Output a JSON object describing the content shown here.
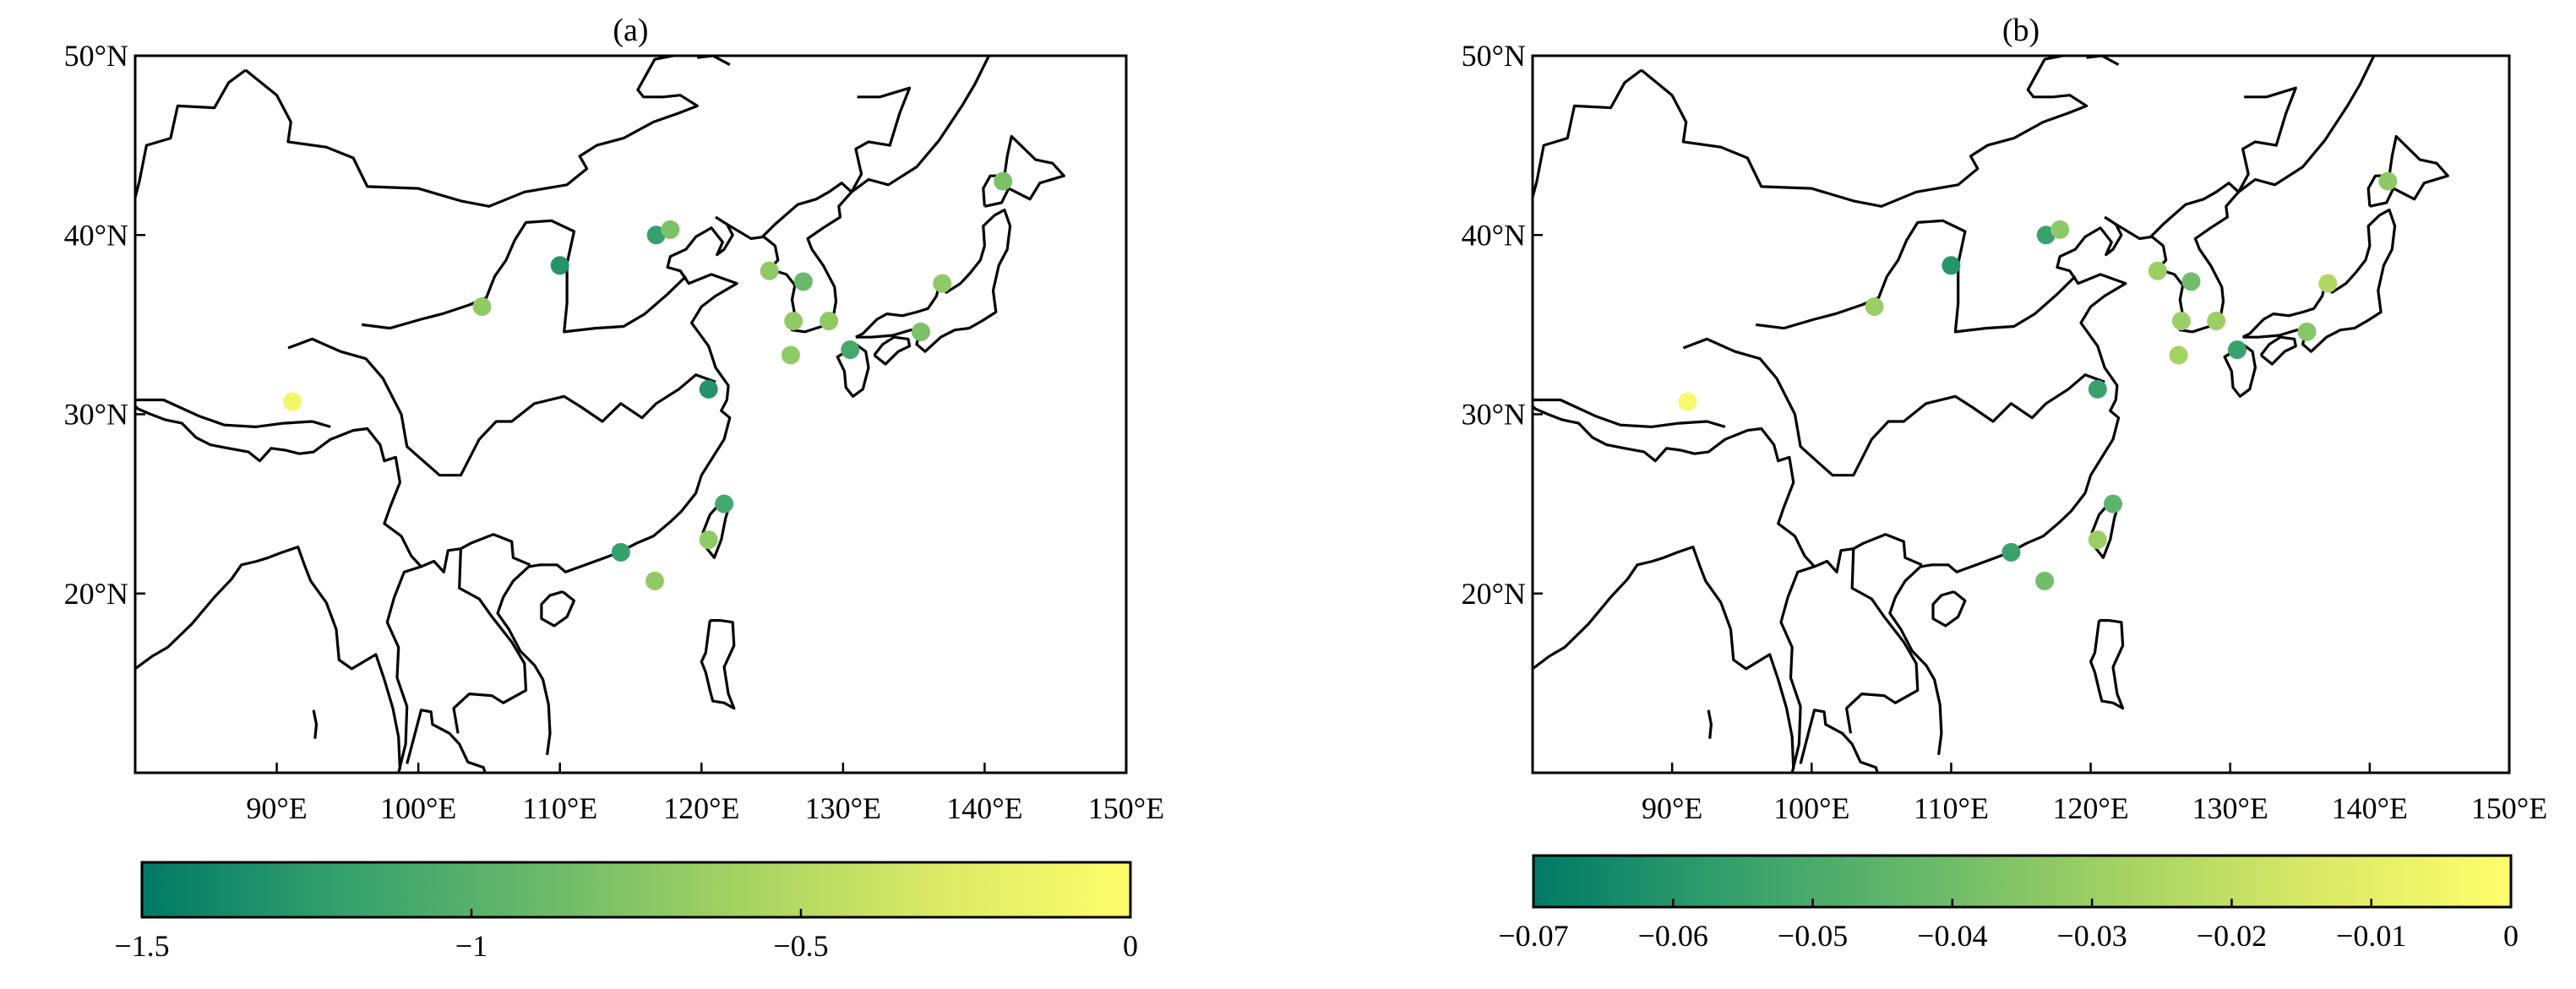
{
  "panels": [
    {
      "id": "a",
      "title": "(a)",
      "lon_ticks": [
        "90°E",
        "100°E",
        "110°E",
        "120°E",
        "130°E",
        "140°E",
        "150°E"
      ],
      "lat_ticks": [
        "50°N",
        "40°N",
        "30°N",
        "20°N"
      ],
      "colorbar_ticks": [
        "−1.5",
        "−1",
        "−0.5",
        "0"
      ],
      "colorbar_range": [
        -1.5,
        0
      ],
      "stations": [
        {
          "lon": 91.1,
          "lat": 30.7,
          "value": -0.1
        },
        {
          "lon": 104.5,
          "lat": 36.0,
          "value": -0.7
        },
        {
          "lon": 110.0,
          "lat": 38.3,
          "value": -1.3
        },
        {
          "lon": 116.8,
          "lat": 40.0,
          "value": -1.2
        },
        {
          "lon": 117.8,
          "lat": 40.3,
          "value": -0.8
        },
        {
          "lon": 120.5,
          "lat": 31.4,
          "value": -1.3
        },
        {
          "lon": 121.6,
          "lat": 25.0,
          "value": -1.1
        },
        {
          "lon": 120.5,
          "lat": 23.0,
          "value": -0.7
        },
        {
          "lon": 114.3,
          "lat": 22.3,
          "value": -1.2
        },
        {
          "lon": 116.7,
          "lat": 20.7,
          "value": -0.7
        },
        {
          "lon": 124.8,
          "lat": 38.0,
          "value": -0.7
        },
        {
          "lon": 127.2,
          "lat": 37.4,
          "value": -0.9
        },
        {
          "lon": 126.5,
          "lat": 35.2,
          "value": -0.7
        },
        {
          "lon": 129.0,
          "lat": 35.2,
          "value": -0.7
        },
        {
          "lon": 126.3,
          "lat": 33.3,
          "value": -0.7
        },
        {
          "lon": 130.5,
          "lat": 33.6,
          "value": -1.1
        },
        {
          "lon": 135.5,
          "lat": 34.6,
          "value": -0.8
        },
        {
          "lon": 137.0,
          "lat": 37.3,
          "value": -0.7
        },
        {
          "lon": 141.3,
          "lat": 43.0,
          "value": -0.8
        }
      ]
    },
    {
      "id": "b",
      "title": "(b)",
      "lon_ticks": [
        "90°E",
        "100°E",
        "110°E",
        "120°E",
        "130°E",
        "140°E",
        "150°E"
      ],
      "lat_ticks": [
        "50°N",
        "40°N",
        "30°N",
        "20°N"
      ],
      "colorbar_ticks": [
        "−0.07",
        "−0.06",
        "−0.05",
        "−0.04",
        "−0.03",
        "−0.02",
        "−0.01",
        "0"
      ],
      "colorbar_range": [
        -0.07,
        0
      ],
      "stations": [
        {
          "lon": 91.1,
          "lat": 30.7,
          "value": -0.003
        },
        {
          "lon": 104.5,
          "lat": 36.0,
          "value": -0.03
        },
        {
          "lon": 110.0,
          "lat": 38.3,
          "value": -0.06
        },
        {
          "lon": 116.8,
          "lat": 40.0,
          "value": -0.055
        },
        {
          "lon": 117.8,
          "lat": 40.3,
          "value": -0.033
        },
        {
          "lon": 120.5,
          "lat": 31.4,
          "value": -0.055
        },
        {
          "lon": 121.6,
          "lat": 25.0,
          "value": -0.045
        },
        {
          "lon": 120.5,
          "lat": 23.0,
          "value": -0.03
        },
        {
          "lon": 114.3,
          "lat": 22.3,
          "value": -0.055
        },
        {
          "lon": 116.7,
          "lat": 20.7,
          "value": -0.04
        },
        {
          "lon": 124.8,
          "lat": 38.0,
          "value": -0.03
        },
        {
          "lon": 127.2,
          "lat": 37.4,
          "value": -0.04
        },
        {
          "lon": 126.5,
          "lat": 35.2,
          "value": -0.03
        },
        {
          "lon": 129.0,
          "lat": 35.2,
          "value": -0.03
        },
        {
          "lon": 126.3,
          "lat": 33.3,
          "value": -0.028
        },
        {
          "lon": 130.5,
          "lat": 33.6,
          "value": -0.055
        },
        {
          "lon": 135.5,
          "lat": 34.6,
          "value": -0.035
        },
        {
          "lon": 137.0,
          "lat": 37.3,
          "value": -0.025
        },
        {
          "lon": 141.3,
          "lat": 43.0,
          "value": -0.033
        }
      ]
    }
  ],
  "map_extent": {
    "lon": [
      80,
      150
    ],
    "lat": [
      10,
      50
    ]
  },
  "colormap": [
    "#007a65",
    "#34a06d",
    "#68b96a",
    "#a4d263",
    "#dae966",
    "#fefe6c"
  ],
  "coastline_color": "#000000"
}
